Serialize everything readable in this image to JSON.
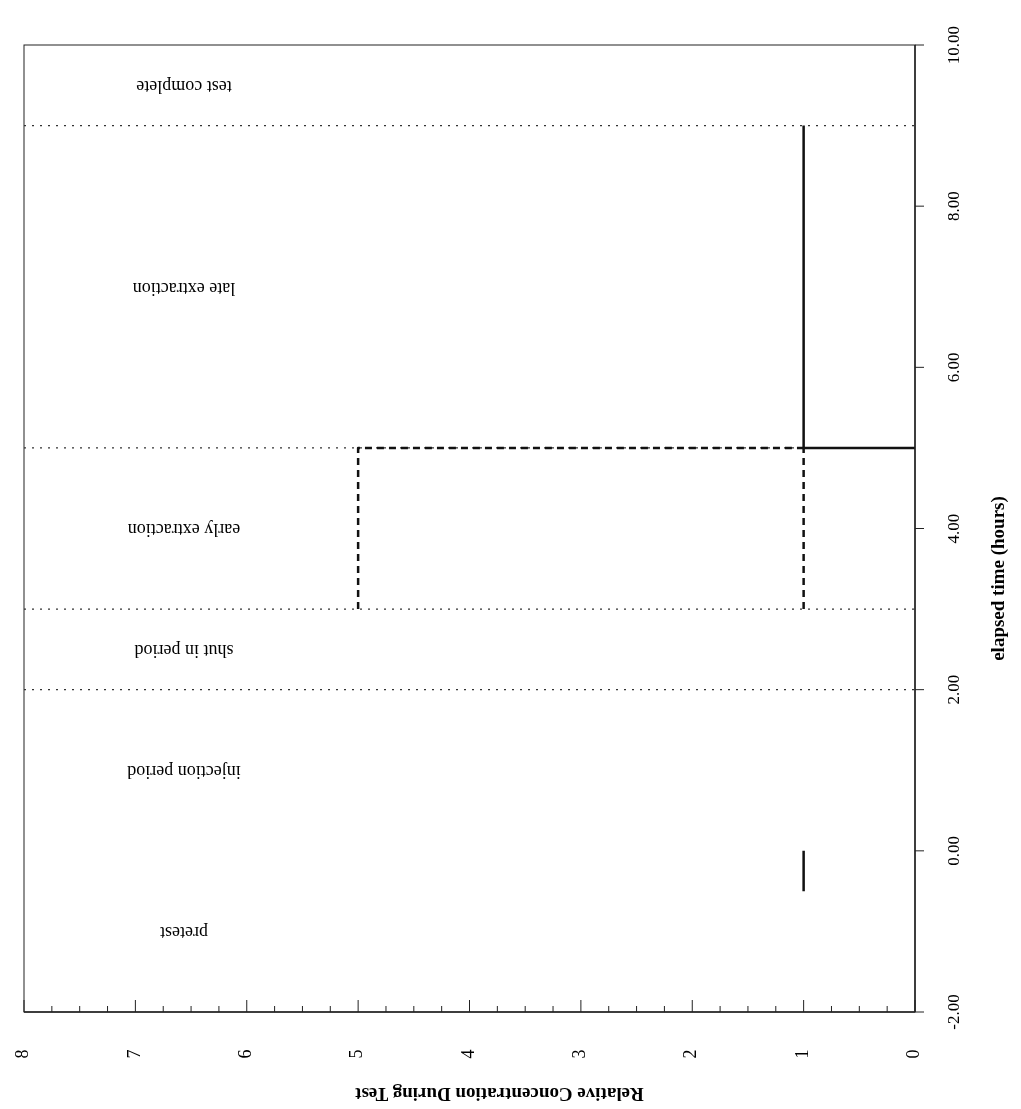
{
  "chart_data": {
    "type": "line",
    "xlabel": "Relative Concentration During Test",
    "ylabel": "elapsed time (hours)",
    "ylim": [
      -2,
      10
    ],
    "yticks": [
      {
        "value": -2,
        "label": "-2.00"
      },
      {
        "value": 0,
        "label": "0.00"
      },
      {
        "value": 2,
        "label": "2.00"
      },
      {
        "value": 4,
        "label": "4.00"
      },
      {
        "value": 6,
        "label": "6.00"
      },
      {
        "value": 8,
        "label": "8.00"
      },
      {
        "value": 10,
        "label": "10.00"
      }
    ],
    "xlim": [
      8,
      0
    ],
    "xticks": [
      8,
      {
        "value": 7.75,
        "label": null
      },
      {
        "value": 7.5,
        "label": null
      },
      {
        "value": 7.25,
        "label": null
      },
      7,
      {
        "value": 6.75,
        "label": null
      },
      {
        "value": 6.5,
        "label": null
      },
      {
        "value": 6.25,
        "label": null
      },
      6,
      {
        "value": 5.75,
        "label": null
      },
      {
        "value": 5.5,
        "label": null
      },
      {
        "value": 5.25,
        "label": null
      },
      5,
      {
        "value": 4.75,
        "label": null
      },
      {
        "value": 4.5,
        "label": null
      },
      {
        "value": 4.25,
        "label": null
      },
      4,
      {
        "value": 3.75,
        "label": null
      },
      {
        "value": 3.5,
        "label": null
      },
      {
        "value": 3.25,
        "label": null
      },
      3,
      {
        "value": 2.75,
        "label": null
      },
      {
        "value": 2.5,
        "label": null
      },
      {
        "value": 2.25,
        "label": null
      },
      2,
      {
        "value": 1.75,
        "label": null
      },
      {
        "value": 1.5,
        "label": null
      },
      {
        "value": 1.25,
        "label": null
      },
      1,
      {
        "value": 0.75,
        "label": null
      },
      {
        "value": 0.5,
        "label": null
      },
      {
        "value": 0.25,
        "label": null
      },
      0
    ],
    "series": [
      {
        "color": "#111111",
        "line_style": "solid",
        "x": [
          1,
          1,
          0.5,
          0,
          1,
          1
        ],
        "values": [
          -0.5,
          0,
          null,
          5,
          5,
          9
        ]
      },
      {
        "color": "#111111",
        "line_style": "dashed",
        "x": [
          5,
          5,
          1
        ],
        "values": [
          3,
          5,
          5
        ]
      },
      {
        "color": "#111111",
        "line_style": "dashed",
        "x": [
          1,
          1
        ],
        "values": [
          3,
          5
        ]
      }
    ],
    "ref_lines": [
      {
        "axis": "y",
        "value": 2,
        "line_style": "dotted"
      },
      {
        "axis": "y",
        "value": 3,
        "line_style": "dotted"
      },
      {
        "axis": "y",
        "value": 5,
        "line_style": "dotted"
      },
      {
        "axis": "y",
        "value": 9,
        "line_style": "dotted"
      }
    ],
    "annotations": [
      "test complete",
      "late extraction",
      "early extraction",
      "shut in period",
      "injection period",
      "pretest"
    ],
    "grid": false,
    "marker": "none"
  }
}
